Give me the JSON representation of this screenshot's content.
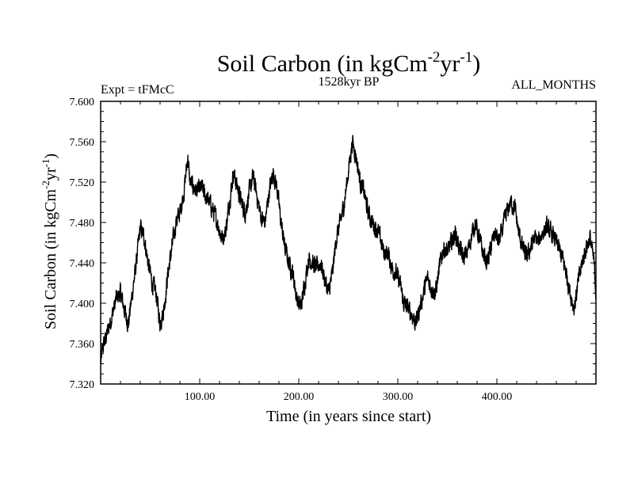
{
  "chart_data": {
    "type": "line",
    "title": {
      "main": "Soil Carbon (in kgCm",
      "sup1": "-2",
      "mid": "yr",
      "sup2": "-1",
      "end": ")"
    },
    "subtitle_left": "Expt = tFMcC",
    "subtitle_center": "1528kyr BP",
    "subtitle_right": "ALL_MONTHS",
    "xlabel": "Time (in years since start)",
    "ylabel": {
      "main": "Soil Carbon (in kgCm",
      "sup1": "-2",
      "mid": "yr",
      "sup2": "-1",
      "end": ")"
    },
    "xlim": [
      0,
      500
    ],
    "ylim": [
      7.32,
      7.6
    ],
    "x_ticks": [
      100,
      200,
      300,
      400
    ],
    "x_tick_labels": [
      "100.00",
      "200.00",
      "300.00",
      "400.00"
    ],
    "y_ticks": [
      7.32,
      7.36,
      7.4,
      7.44,
      7.48,
      7.52,
      7.56,
      7.6
    ],
    "y_tick_labels": [
      "7.320",
      "7.360",
      "7.400",
      "7.440",
      "7.480",
      "7.520",
      "7.560",
      "7.600"
    ],
    "grid": false,
    "series": [
      {
        "name": "Soil Carbon",
        "color": "#000000",
        "x": [
          0,
          2,
          5,
          8,
          12,
          16,
          20,
          25,
          28,
          32,
          36,
          40,
          44,
          48,
          52,
          56,
          60,
          64,
          68,
          72,
          76,
          80,
          84,
          88,
          90,
          94,
          98,
          102,
          106,
          110,
          114,
          118,
          122,
          126,
          130,
          134,
          138,
          142,
          146,
          150,
          154,
          158,
          162,
          166,
          170,
          174,
          178,
          182,
          186,
          190,
          194,
          198,
          202,
          206,
          210,
          214,
          218,
          222,
          226,
          230,
          234,
          238,
          242,
          246,
          250,
          254,
          258,
          262,
          266,
          270,
          274,
          278,
          282,
          286,
          290,
          294,
          298,
          302,
          306,
          310,
          314,
          318,
          322,
          326,
          330,
          334,
          338,
          342,
          346,
          350,
          354,
          358,
          362,
          366,
          370,
          374,
          378,
          382,
          386,
          390,
          394,
          398,
          402,
          406,
          410,
          414,
          418,
          422,
          426,
          430,
          434,
          438,
          442,
          446,
          450,
          454,
          458,
          462,
          466,
          470,
          474,
          478,
          482,
          486,
          490,
          494,
          498,
          500
        ],
        "y": [
          7.34,
          7.355,
          7.365,
          7.375,
          7.39,
          7.405,
          7.41,
          7.39,
          7.38,
          7.41,
          7.44,
          7.475,
          7.465,
          7.44,
          7.42,
          7.41,
          7.38,
          7.395,
          7.43,
          7.455,
          7.48,
          7.49,
          7.51,
          7.545,
          7.52,
          7.515,
          7.51,
          7.515,
          7.505,
          7.5,
          7.49,
          7.48,
          7.465,
          7.47,
          7.5,
          7.53,
          7.515,
          7.5,
          7.49,
          7.51,
          7.525,
          7.505,
          7.485,
          7.48,
          7.51,
          7.53,
          7.515,
          7.48,
          7.455,
          7.44,
          7.43,
          7.405,
          7.395,
          7.42,
          7.445,
          7.44,
          7.435,
          7.44,
          7.425,
          7.41,
          7.43,
          7.465,
          7.48,
          7.5,
          7.53,
          7.56,
          7.545,
          7.52,
          7.51,
          7.49,
          7.48,
          7.475,
          7.465,
          7.45,
          7.45,
          7.435,
          7.43,
          7.42,
          7.4,
          7.395,
          7.39,
          7.38,
          7.395,
          7.41,
          7.425,
          7.415,
          7.41,
          7.435,
          7.455,
          7.45,
          7.46,
          7.47,
          7.455,
          7.445,
          7.45,
          7.465,
          7.48,
          7.465,
          7.45,
          7.44,
          7.455,
          7.47,
          7.46,
          7.475,
          7.49,
          7.5,
          7.495,
          7.47,
          7.455,
          7.445,
          7.455,
          7.465,
          7.46,
          7.47,
          7.475,
          7.47,
          7.465,
          7.455,
          7.445,
          7.43,
          7.41,
          7.395,
          7.42,
          7.44,
          7.455,
          7.465,
          7.44,
          7.41
        ]
      }
    ]
  }
}
